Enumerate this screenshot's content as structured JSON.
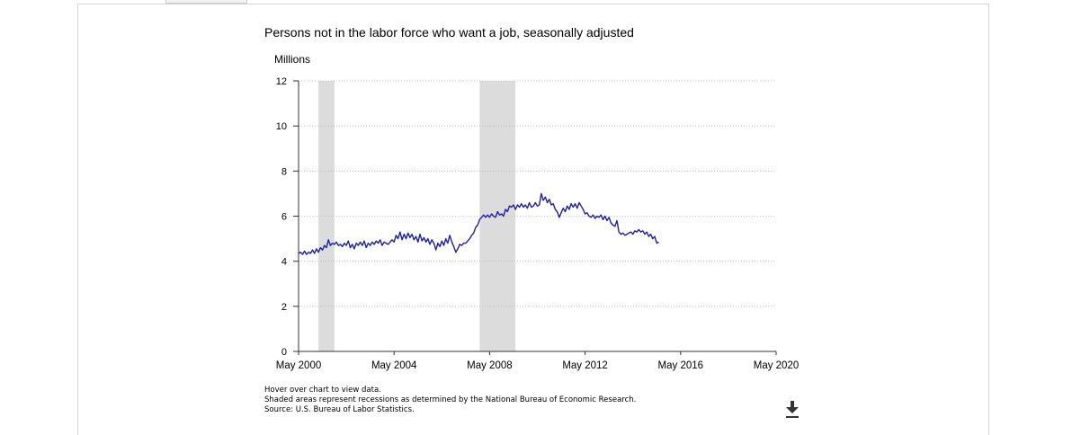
{
  "chart_data": {
    "type": "line",
    "title": "Persons not in the labor force who want a job, seasonally adjusted",
    "ylabel": "Millions",
    "ylim": [
      0,
      12
    ],
    "yticks": [
      "0",
      "2",
      "4",
      "6",
      "8",
      "10",
      "12"
    ],
    "xlim": [
      "2000-05",
      "2020-05"
    ],
    "xticks": [
      "May 2000",
      "May 2004",
      "May 2008",
      "May 2012",
      "May 2016",
      "May 2020"
    ],
    "grid": "horizontal-dotted",
    "recessions": [
      {
        "start": "2001-03",
        "end": "2001-11"
      },
      {
        "start": "2007-12",
        "end": "2009-06"
      }
    ],
    "series": [
      {
        "color": "#1f1fa8",
        "start": "2000-05",
        "values": [
          4.35,
          4.4,
          4.3,
          4.45,
          4.3,
          4.4,
          4.35,
          4.5,
          4.35,
          4.55,
          4.4,
          4.6,
          4.5,
          4.7,
          4.6,
          4.95,
          4.7,
          4.8,
          4.75,
          4.85,
          4.7,
          4.75,
          4.65,
          4.8,
          4.7,
          4.9,
          4.6,
          4.75,
          4.55,
          4.8,
          4.7,
          4.85,
          4.7,
          4.9,
          4.6,
          4.8,
          4.7,
          4.85,
          4.75,
          4.9,
          4.8,
          4.95,
          4.7,
          4.85,
          4.8,
          4.75,
          4.85,
          4.95,
          4.85,
          5.15,
          5.0,
          5.3,
          4.95,
          5.2,
          5.0,
          5.25,
          5.05,
          5.2,
          4.95,
          5.1,
          4.85,
          5.2,
          4.9,
          5.05,
          4.85,
          5.0,
          4.75,
          4.95,
          4.8,
          4.5,
          4.8,
          4.65,
          4.9,
          4.7,
          5.0,
          4.8,
          5.15,
          4.85,
          4.65,
          4.4,
          4.55,
          4.75,
          4.7,
          4.8,
          4.8,
          4.9,
          5.0,
          5.15,
          5.25,
          5.5,
          5.6,
          5.85,
          5.95,
          6.05,
          5.95,
          6.05,
          5.95,
          6.1,
          6.0,
          5.95,
          6.2,
          6.05,
          6.1,
          6.0,
          6.3,
          6.2,
          6.45,
          6.4,
          6.5,
          6.3,
          6.5,
          6.4,
          6.55,
          6.4,
          6.5,
          6.35,
          6.6,
          6.4,
          6.45,
          6.6,
          6.45,
          6.5,
          7.0,
          6.7,
          6.85,
          6.6,
          6.75,
          6.5,
          6.55,
          6.3,
          6.2,
          5.95,
          6.15,
          6.35,
          6.2,
          6.45,
          6.3,
          6.55,
          6.4,
          6.55,
          6.35,
          6.6,
          6.45,
          6.3,
          6.1,
          6.15,
          6.0,
          5.95,
          6.05,
          5.9,
          6.0,
          5.95,
          6.05,
          5.85,
          6.0,
          5.8,
          5.95,
          5.7,
          5.6,
          5.55,
          5.8,
          5.3,
          5.2,
          5.25,
          5.15,
          5.2,
          5.25,
          5.3,
          5.2,
          5.35,
          5.3,
          5.4,
          5.3,
          5.35,
          5.2,
          5.3,
          5.1,
          5.2,
          5.0,
          5.1,
          4.8,
          4.85
        ]
      }
    ]
  },
  "notes": {
    "hover": "Hover over chart to view data.",
    "recessions": "Shaded areas represent recessions as determined by the National Bureau of Economic Research.",
    "source": "Source: U.S. Bureau of Labor Statistics."
  },
  "download": {
    "icon": "download-icon"
  }
}
